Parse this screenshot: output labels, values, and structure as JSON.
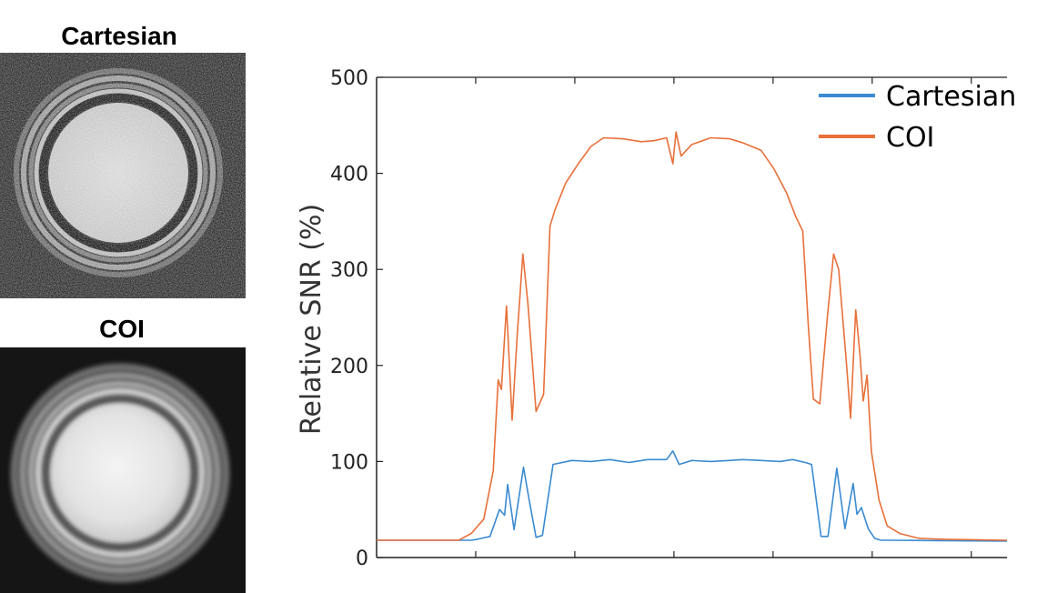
{
  "panels": {
    "cartesian_title": "Cartesian",
    "coi_title": "COI"
  },
  "colors": {
    "cartesian": "#3a8ad1",
    "coi": "#e8703a",
    "axis": "#222222"
  },
  "chart_data": {
    "type": "line",
    "title": "",
    "xlabel": "",
    "ylabel": "Relative SNR (%)",
    "ylim": [
      0,
      500
    ],
    "yticks": [
      0,
      100,
      200,
      300,
      400,
      500
    ],
    "xlim": [
      0,
      100
    ],
    "x_tick_labels_shown": false,
    "legend_position": "top-right",
    "series": [
      {
        "name": "Cartesian",
        "color": "#3a8ad1",
        "points": [
          [
            0,
            18
          ],
          [
            15,
            18
          ],
          [
            16,
            19
          ],
          [
            18,
            22
          ],
          [
            19.5,
            50
          ],
          [
            20.3,
            44
          ],
          [
            20.8,
            76
          ],
          [
            21.8,
            29
          ],
          [
            23.3,
            94
          ],
          [
            24.2,
            60
          ],
          [
            25.3,
            21
          ],
          [
            26.3,
            23
          ],
          [
            28,
            97
          ],
          [
            31,
            101
          ],
          [
            34,
            100
          ],
          [
            37,
            102
          ],
          [
            40,
            99
          ],
          [
            43,
            102
          ],
          [
            46,
            102
          ],
          [
            47,
            111
          ],
          [
            48,
            97
          ],
          [
            50,
            101
          ],
          [
            53,
            100
          ],
          [
            56,
            101
          ],
          [
            58,
            102
          ],
          [
            61,
            101
          ],
          [
            64,
            100
          ],
          [
            66,
            102
          ],
          [
            68,
            99
          ],
          [
            69,
            97
          ],
          [
            70.5,
            22
          ],
          [
            71.6,
            22
          ],
          [
            73,
            93
          ],
          [
            74.3,
            30
          ],
          [
            75.6,
            77
          ],
          [
            76.2,
            45
          ],
          [
            76.9,
            52
          ],
          [
            78,
            30
          ],
          [
            79,
            20
          ],
          [
            80,
            18
          ],
          [
            82,
            18
          ],
          [
            100,
            17
          ]
        ]
      },
      {
        "name": "COI",
        "color": "#e8703a",
        "points": [
          [
            0,
            18
          ],
          [
            13,
            18
          ],
          [
            15,
            25
          ],
          [
            17,
            40
          ],
          [
            18.5,
            90
          ],
          [
            19.3,
            185
          ],
          [
            19.8,
            175
          ],
          [
            20.6,
            262
          ],
          [
            21.5,
            143
          ],
          [
            22.3,
            230
          ],
          [
            23.2,
            316
          ],
          [
            24,
            265
          ],
          [
            25.3,
            152
          ],
          [
            26.5,
            170
          ],
          [
            27.5,
            345
          ],
          [
            28.3,
            362
          ],
          [
            30,
            390
          ],
          [
            32,
            410
          ],
          [
            34,
            428
          ],
          [
            36,
            437
          ],
          [
            39,
            436
          ],
          [
            42,
            433
          ],
          [
            44,
            434
          ],
          [
            46,
            437
          ],
          [
            47,
            410
          ],
          [
            47.5,
            443
          ],
          [
            48.3,
            418
          ],
          [
            50,
            430
          ],
          [
            53,
            437
          ],
          [
            56,
            436
          ],
          [
            58,
            432
          ],
          [
            61,
            424
          ],
          [
            63,
            405
          ],
          [
            65,
            380
          ],
          [
            66.5,
            355
          ],
          [
            67.6,
            340
          ],
          [
            68.5,
            240
          ],
          [
            69.3,
            165
          ],
          [
            70.3,
            160
          ],
          [
            71.5,
            250
          ],
          [
            72.5,
            316
          ],
          [
            73.3,
            300
          ],
          [
            74.5,
            205
          ],
          [
            75.2,
            145
          ],
          [
            76,
            258
          ],
          [
            76.7,
            210
          ],
          [
            77.2,
            163
          ],
          [
            77.8,
            190
          ],
          [
            78.5,
            110
          ],
          [
            79.7,
            60
          ],
          [
            81,
            33
          ],
          [
            83,
            25
          ],
          [
            86,
            20
          ],
          [
            90,
            19
          ],
          [
            100,
            18
          ]
        ]
      }
    ]
  }
}
